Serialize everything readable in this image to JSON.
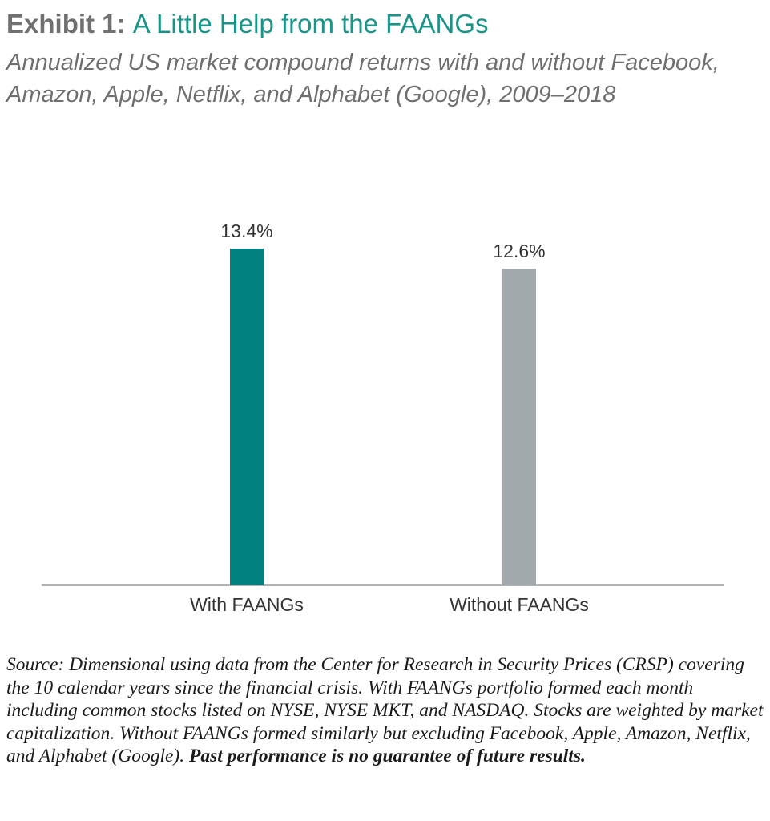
{
  "title": {
    "prefix": "Exhibit 1:",
    "main": "A Little Help from the FAANGs"
  },
  "subtitle": "Annualized US market compound returns with and without Facebook, Amazon, Apple, Netflix, and Alphabet (Google), 2009–2018",
  "source": {
    "text": "Source: Dimensional using data from the Center for Research in Security Prices (CRSP) covering the 10 calendar years since the financial crisis. With FAANGs portfolio formed each month including common stocks listed on NYSE, NYSE MKT, and NASDAQ. Stocks are weighted by market capitalization. Without FAANGs formed similarly but excluding Facebook, Apple, Amazon, Netflix, and Alphabet (Google).",
    "bold": "Past performance is no guarantee of future results."
  },
  "chart_data": {
    "type": "bar",
    "title": "A Little Help from the FAANGs",
    "categories": [
      "With FAANGs",
      "Without FAANGs"
    ],
    "values": [
      13.4,
      12.6
    ],
    "labels": [
      "13.4%",
      "12.6%"
    ],
    "unit": "%",
    "colors": [
      "#00807f",
      "#a2a9ad"
    ],
    "xlabel": "",
    "ylabel": "",
    "ylim": [
      0,
      15
    ],
    "grid": false
  }
}
